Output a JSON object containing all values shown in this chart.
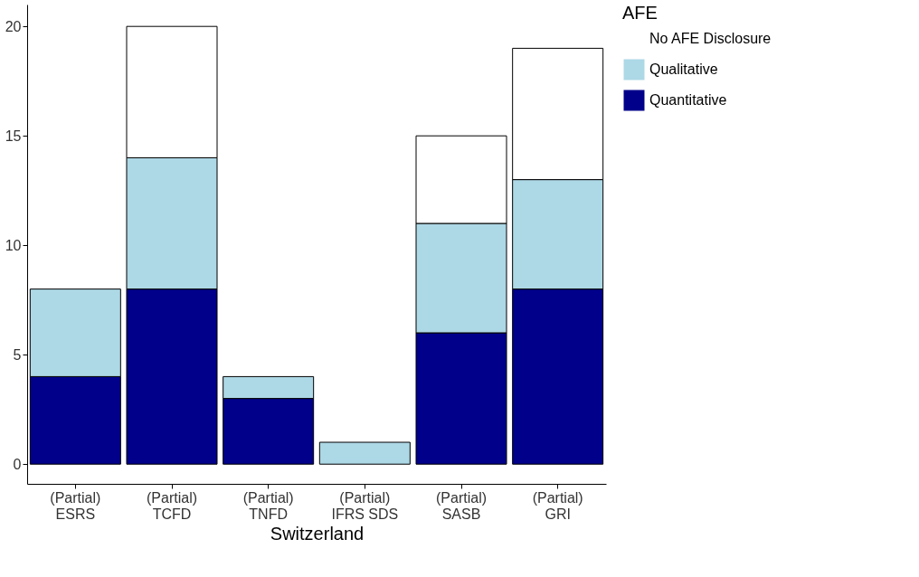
{
  "chart_data": {
    "type": "bar",
    "stacked": true,
    "xlabel": "Switzerland",
    "legend_title": "AFE",
    "legend": "right",
    "grid": false,
    "categories": [
      "(Partial)\nESRS",
      "(Partial)\nTCFD",
      "(Partial)\nTNFD",
      "(Partial)\nIFRS SDS",
      "(Partial)\nSASB",
      "(Partial)\nGRI"
    ],
    "series": [
      {
        "name": "Quantitative",
        "color": "#00008b",
        "values": [
          4,
          8,
          3,
          0,
          6,
          8
        ]
      },
      {
        "name": "Qualitative",
        "color": "#add8e6",
        "values": [
          4,
          6,
          1,
          1,
          5,
          5
        ]
      },
      {
        "name": "No AFE Disclosure",
        "color": "#ffffff",
        "values": [
          0,
          6,
          0,
          0,
          4,
          6
        ]
      }
    ],
    "ylim": [
      -0.9,
      21
    ],
    "yticks": [
      0,
      5,
      10,
      15,
      20
    ]
  }
}
